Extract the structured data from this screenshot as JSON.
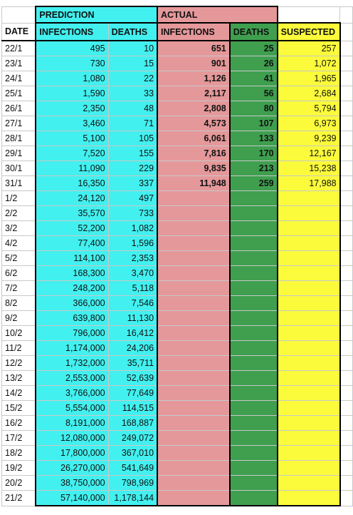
{
  "groups": [
    "PREDICTION",
    "ACTUAL"
  ],
  "columns": [
    "DATE",
    "INFECTIONS",
    "DEATHS",
    "INFECTIONS",
    "DEATHS",
    "SUSPECTED"
  ],
  "rows": [
    [
      "22/1",
      "495",
      "10",
      "651",
      "25",
      "257"
    ],
    [
      "23/1",
      "730",
      "15",
      "901",
      "26",
      "1,072"
    ],
    [
      "24/1",
      "1,080",
      "22",
      "1,126",
      "41",
      "1,965"
    ],
    [
      "25/1",
      "1,590",
      "33",
      "2,117",
      "56",
      "2,684"
    ],
    [
      "26/1",
      "2,350",
      "48",
      "2,808",
      "80",
      "5,794"
    ],
    [
      "27/1",
      "3,460",
      "71",
      "4,573",
      "107",
      "6,973"
    ],
    [
      "28/1",
      "5,100",
      "105",
      "6,061",
      "133",
      "9,239"
    ],
    [
      "29/1",
      "7,520",
      "155",
      "7,816",
      "170",
      "12,167"
    ],
    [
      "30/1",
      "11,090",
      "229",
      "9,835",
      "213",
      "15,238"
    ],
    [
      "31/1",
      "16,350",
      "337",
      "11,948",
      "259",
      "17,988"
    ],
    [
      "1/2",
      "24,120",
      "497"
    ],
    [
      "2/2",
      "35,570",
      "733"
    ],
    [
      "3/2",
      "52,200",
      "1,082"
    ],
    [
      "4/2",
      "77,400",
      "1,596"
    ],
    [
      "5/2",
      "114,100",
      "2,353"
    ],
    [
      "6/2",
      "168,300",
      "3,470"
    ],
    [
      "7/2",
      "248,200",
      "5,118"
    ],
    [
      "8/2",
      "366,000",
      "7,546"
    ],
    [
      "9/2",
      "639,800",
      "11,130"
    ],
    [
      "10/2",
      "796,000",
      "16,412"
    ],
    [
      "11/2",
      "1,174,000",
      "24,206"
    ],
    [
      "12/2",
      "1,732,000",
      "35,711"
    ],
    [
      "13/2",
      "2,553,000",
      "52,639"
    ],
    [
      "14/2",
      "3,766,000",
      "77,649"
    ],
    [
      "15/2",
      "5,554,000",
      "114,515"
    ],
    [
      "16/2",
      "8,191,000",
      "168,887"
    ],
    [
      "17/2",
      "12,080,000",
      "249,072"
    ],
    [
      "18/2",
      "17,800,000",
      "367,010"
    ],
    [
      "19/2",
      "26,270,000",
      "541,649"
    ],
    [
      "20/2",
      "38,750,000",
      "798,969"
    ],
    [
      "21/2",
      "57,140,000",
      "1,178,144"
    ]
  ]
}
